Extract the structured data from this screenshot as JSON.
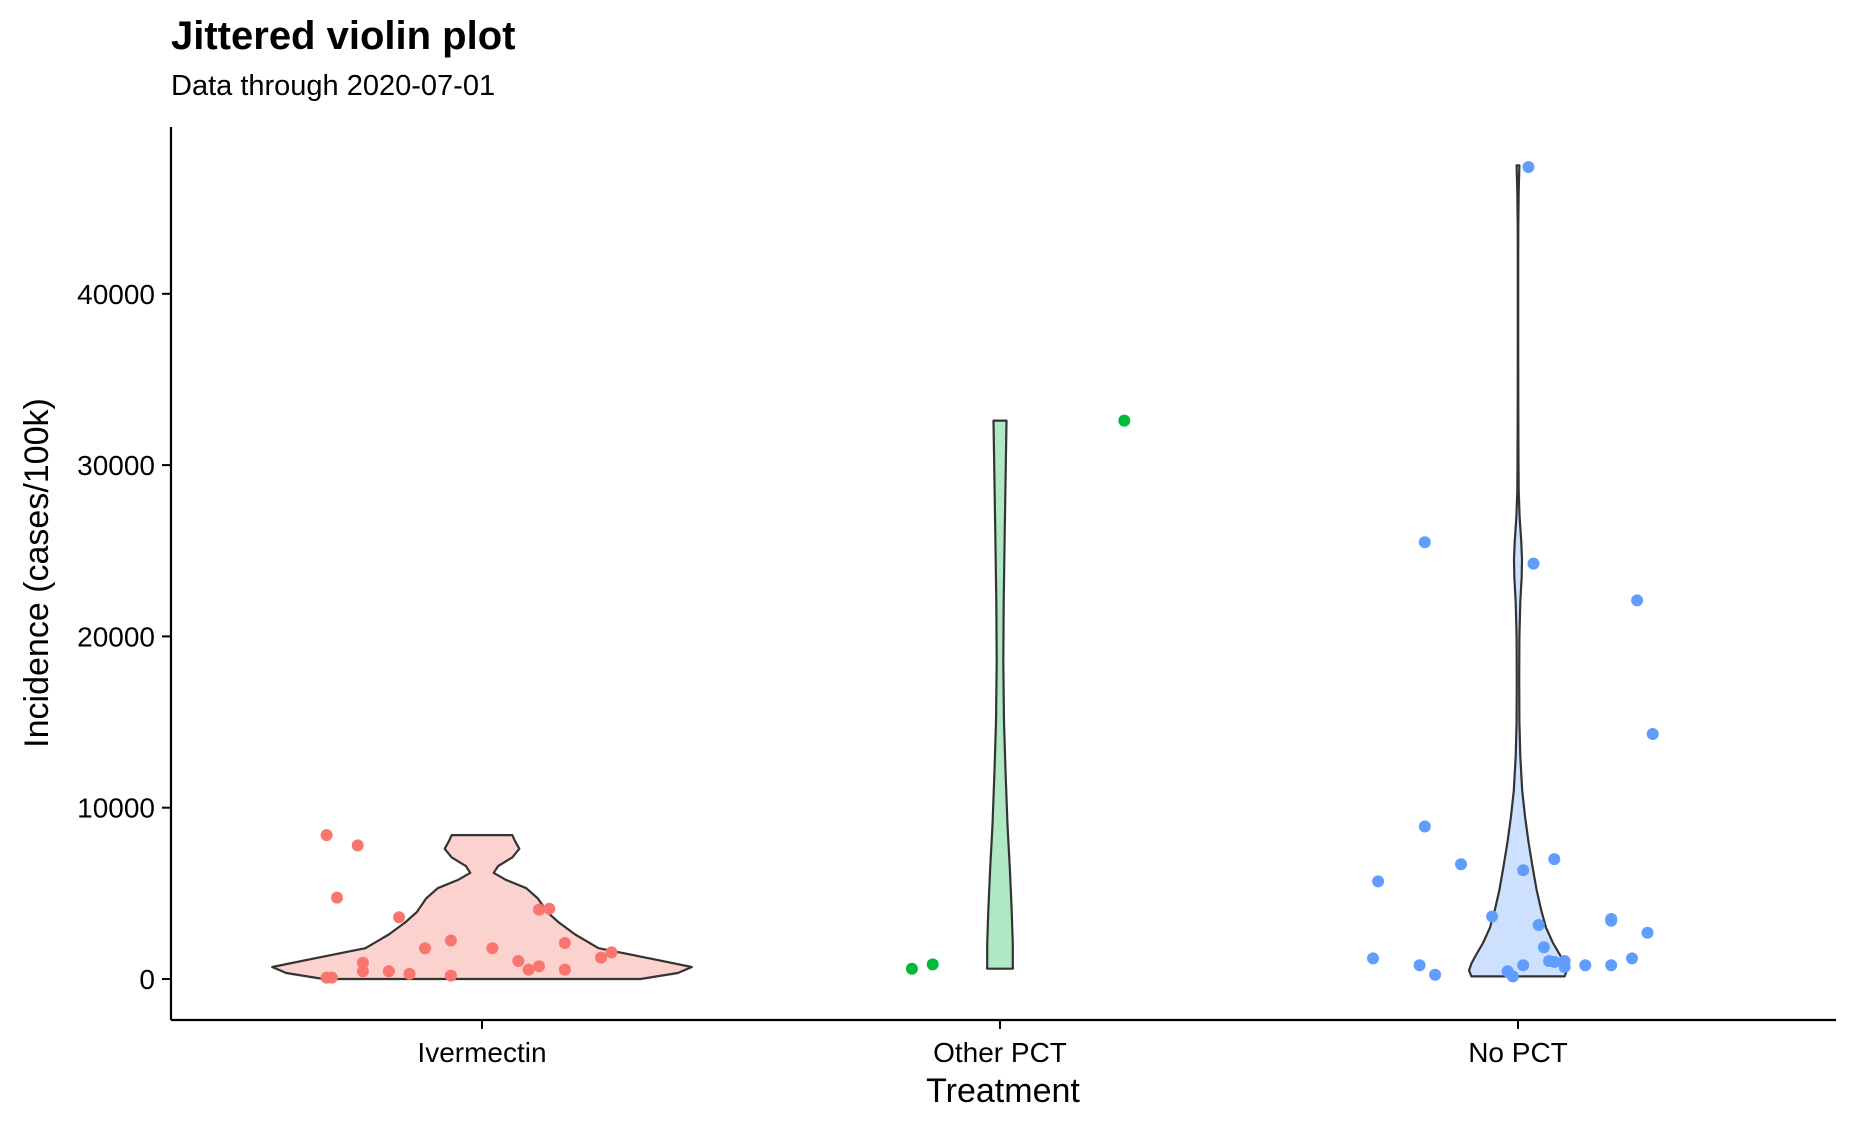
{
  "chart_data": {
    "type": "violin",
    "title": "Jittered violin plot",
    "subtitle": "Data through 2020-07-01",
    "xlabel": "Treatment",
    "ylabel": "Incidence (cases/100k)",
    "categories": [
      "Ivermectin",
      "Other PCT",
      "No PCT"
    ],
    "ylim": [
      -2200,
      49000
    ],
    "yticks": [
      0,
      10000,
      20000,
      30000,
      40000
    ],
    "grid": false,
    "legend": "none",
    "series": [
      {
        "category": "Ivermectin",
        "fill": "#fcd2cf",
        "point_color": "#f8766d",
        "violin": {
          "y_min": 0,
          "y_max": 8400,
          "profile": [
            [
              0,
              0.68
            ],
            [
              350,
              0.84
            ],
            [
              700,
              0.9
            ],
            [
              1200,
              0.72
            ],
            [
              1800,
              0.5
            ],
            [
              2600,
              0.4
            ],
            [
              3300,
              0.33
            ],
            [
              3900,
              0.28
            ],
            [
              4700,
              0.24
            ],
            [
              5300,
              0.19
            ],
            [
              5800,
              0.1
            ],
            [
              6200,
              0.05
            ],
            [
              6600,
              0.07
            ],
            [
              7100,
              0.13
            ],
            [
              7600,
              0.16
            ],
            [
              8100,
              0.14
            ],
            [
              8400,
              0.13
            ]
          ]
        },
        "points": [
          {
            "x": -0.3,
            "y": 8400
          },
          {
            "x": -0.24,
            "y": 7800
          },
          {
            "x": -0.28,
            "y": 4750
          },
          {
            "x": -0.16,
            "y": 3600
          },
          {
            "x": 0.11,
            "y": 4050
          },
          {
            "x": 0.13,
            "y": 4100
          },
          {
            "x": -0.06,
            "y": 2250
          },
          {
            "x": -0.11,
            "y": 1800
          },
          {
            "x": 0.02,
            "y": 1800
          },
          {
            "x": 0.16,
            "y": 2100
          },
          {
            "x": 0.25,
            "y": 1550
          },
          {
            "x": 0.23,
            "y": 1250
          },
          {
            "x": 0.07,
            "y": 1050
          },
          {
            "x": -0.23,
            "y": 950
          },
          {
            "x": 0.11,
            "y": 750
          },
          {
            "x": 0.09,
            "y": 550
          },
          {
            "x": 0.16,
            "y": 550
          },
          {
            "x": -0.23,
            "y": 450
          },
          {
            "x": -0.18,
            "y": 450
          },
          {
            "x": -0.14,
            "y": 300
          },
          {
            "x": -0.06,
            "y": 200
          },
          {
            "x": -0.3,
            "y": 80
          },
          {
            "x": -0.29,
            "y": 80
          }
        ]
      },
      {
        "category": "Other PCT",
        "fill": "#b0e8c4",
        "point_color": "#00ba38",
        "violin": {
          "y_min": 600,
          "y_max": 32600,
          "profile": [
            [
              600,
              0.055
            ],
            [
              2000,
              0.055
            ],
            [
              4000,
              0.05
            ],
            [
              6500,
              0.042
            ],
            [
              9000,
              0.032
            ],
            [
              12000,
              0.024
            ],
            [
              15000,
              0.017
            ],
            [
              18500,
              0.014
            ],
            [
              22000,
              0.016
            ],
            [
              26000,
              0.02
            ],
            [
              30000,
              0.025
            ],
            [
              32600,
              0.028
            ]
          ]
        },
        "points": [
          {
            "x": -0.17,
            "y": 600
          },
          {
            "x": -0.13,
            "y": 850
          },
          {
            "x": 0.24,
            "y": 32600
          }
        ]
      },
      {
        "category": "No PCT",
        "fill": "#cde0fd",
        "point_color": "#619cff",
        "violin": {
          "y_min": 150,
          "y_max": 47500,
          "profile": [
            [
              150,
              0.2
            ],
            [
              500,
              0.21
            ],
            [
              900,
              0.2
            ],
            [
              1400,
              0.18
            ],
            [
              2100,
              0.15
            ],
            [
              3000,
              0.12
            ],
            [
              4000,
              0.1
            ],
            [
              5200,
              0.08
            ],
            [
              6500,
              0.063
            ],
            [
              8000,
              0.045
            ],
            [
              9500,
              0.03
            ],
            [
              11000,
              0.018
            ],
            [
              13000,
              0.01
            ],
            [
              15000,
              0.006
            ],
            [
              17500,
              0.005
            ],
            [
              20000,
              0.006
            ],
            [
              22000,
              0.01
            ],
            [
              23500,
              0.016
            ],
            [
              24500,
              0.017
            ],
            [
              25500,
              0.014
            ],
            [
              27000,
              0.007
            ],
            [
              28500,
              0.003
            ],
            [
              30000,
              0.002
            ],
            [
              33000,
              0.0015
            ],
            [
              37000,
              0.001
            ],
            [
              42000,
              0.001
            ],
            [
              44000,
              0.0015
            ],
            [
              46000,
              0.003
            ],
            [
              47500,
              0.006
            ]
          ]
        },
        "points": [
          {
            "x": 0.02,
            "y": 47400
          },
          {
            "x": -0.18,
            "y": 25500
          },
          {
            "x": 0.03,
            "y": 24250
          },
          {
            "x": 0.23,
            "y": 22100
          },
          {
            "x": 0.26,
            "y": 14300
          },
          {
            "x": -0.18,
            "y": 8900
          },
          {
            "x": 0.07,
            "y": 7000
          },
          {
            "x": -0.11,
            "y": 6700
          },
          {
            "x": 0.01,
            "y": 6350
          },
          {
            "x": -0.27,
            "y": 5700
          },
          {
            "x": -0.05,
            "y": 3650
          },
          {
            "x": 0.18,
            "y": 3500
          },
          {
            "x": 0.18,
            "y": 3400
          },
          {
            "x": 0.04,
            "y": 3150
          },
          {
            "x": 0.25,
            "y": 2700
          },
          {
            "x": 0.05,
            "y": 1850
          },
          {
            "x": -0.28,
            "y": 1200
          },
          {
            "x": 0.22,
            "y": 1200
          },
          {
            "x": 0.06,
            "y": 1050
          },
          {
            "x": 0.09,
            "y": 1050
          },
          {
            "x": 0.07,
            "y": 1000
          },
          {
            "x": -0.19,
            "y": 800
          },
          {
            "x": 0.01,
            "y": 800
          },
          {
            "x": 0.13,
            "y": 800
          },
          {
            "x": 0.18,
            "y": 800
          },
          {
            "x": 0.09,
            "y": 700
          },
          {
            "x": -0.02,
            "y": 450
          },
          {
            "x": -0.16,
            "y": 250
          },
          {
            "x": -0.01,
            "y": 150
          }
        ]
      }
    ]
  }
}
